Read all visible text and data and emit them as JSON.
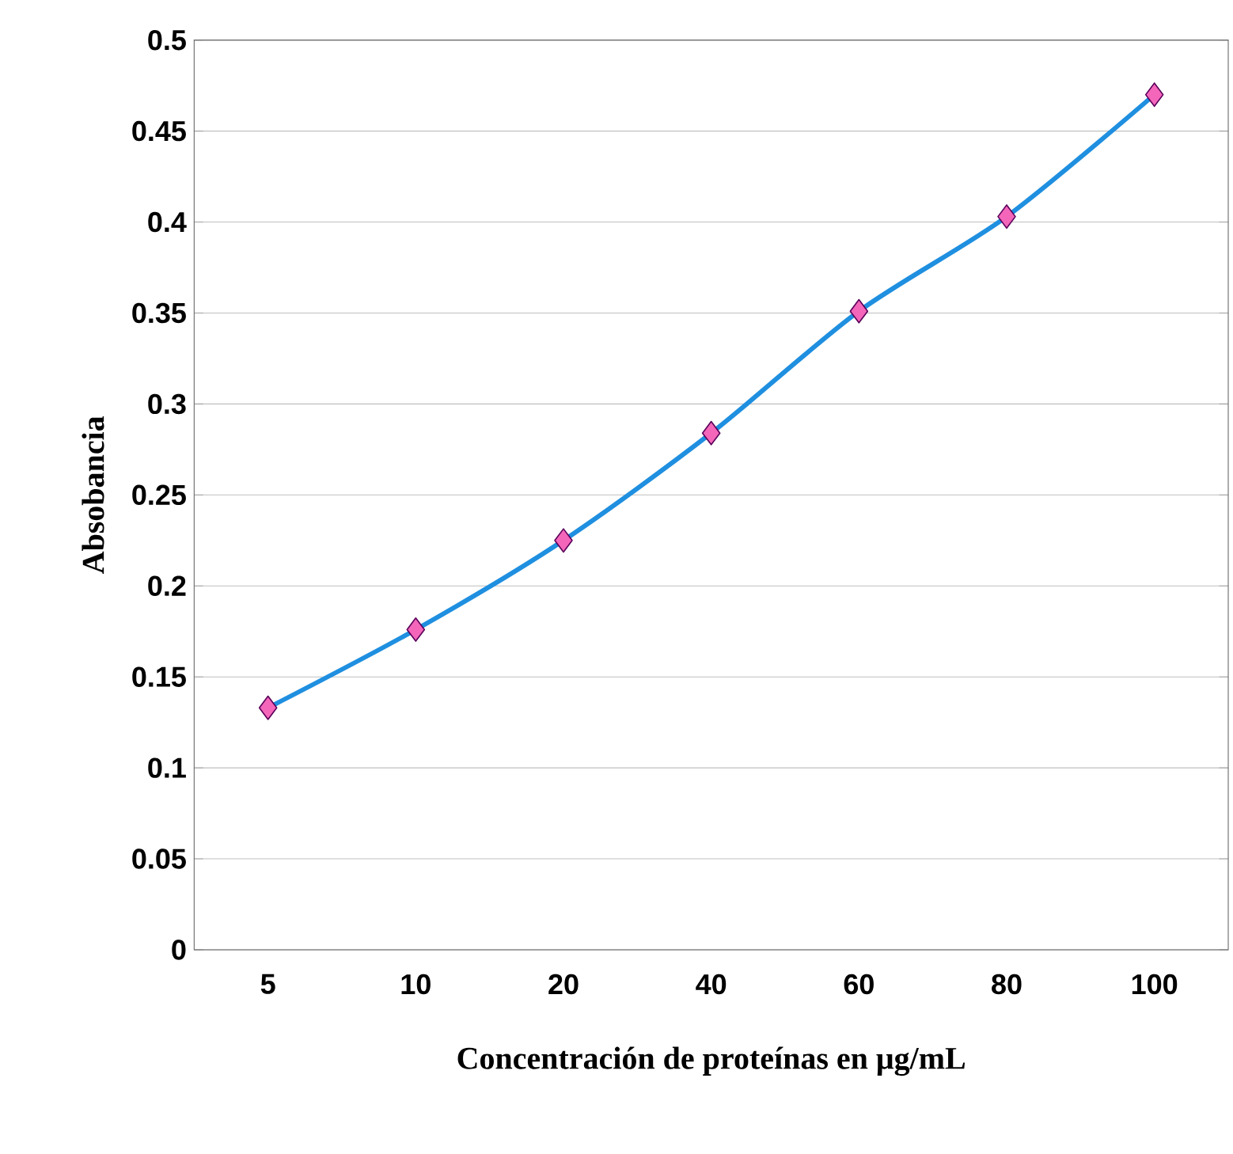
{
  "chart_data": {
    "type": "line",
    "xlabel": "Concentración de proteínas en μg/mL",
    "ylabel": "Absobancia",
    "categories": [
      "5",
      "10",
      "20",
      "40",
      "60",
      "80",
      "100"
    ],
    "series": [
      {
        "color": "#1f8fe0",
        "values": [
          0.133,
          0.176,
          0.225,
          0.284,
          0.351,
          0.403,
          0.47
        ]
      }
    ],
    "ylim": [
      0,
      0.5
    ],
    "yticks": [
      0,
      0.05,
      0.1,
      0.15,
      0.2,
      0.25,
      0.3,
      0.35,
      0.4,
      0.45,
      0.5
    ],
    "grid": "y",
    "marker": "diamond",
    "line_style": "solid"
  }
}
